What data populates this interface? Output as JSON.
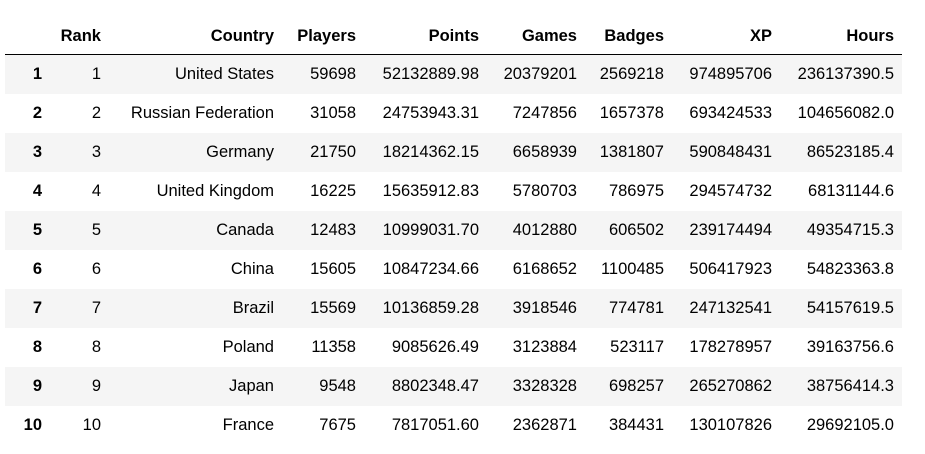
{
  "table": {
    "columns": [
      "",
      "Rank",
      "Country",
      "Players",
      "Points",
      "Games",
      "Badges",
      "XP",
      "Hours"
    ],
    "rows": [
      [
        "1",
        "1",
        "United States",
        "59698",
        "52132889.98",
        "20379201",
        "2569218",
        "974895706",
        "236137390.5"
      ],
      [
        "2",
        "2",
        "Russian Federation",
        "31058",
        "24753943.31",
        "7247856",
        "1657378",
        "693424533",
        "104656082.0"
      ],
      [
        "3",
        "3",
        "Germany",
        "21750",
        "18214362.15",
        "6658939",
        "1381807",
        "590848431",
        "86523185.4"
      ],
      [
        "4",
        "4",
        "United Kingdom",
        "16225",
        "15635912.83",
        "5780703",
        "786975",
        "294574732",
        "68131144.6"
      ],
      [
        "5",
        "5",
        "Canada",
        "12483",
        "10999031.70",
        "4012880",
        "606502",
        "239174494",
        "49354715.3"
      ],
      [
        "6",
        "6",
        "China",
        "15605",
        "10847234.66",
        "6168652",
        "1100485",
        "506417923",
        "54823363.8"
      ],
      [
        "7",
        "7",
        "Brazil",
        "15569",
        "10136859.28",
        "3918546",
        "774781",
        "247132541",
        "54157619.5"
      ],
      [
        "8",
        "8",
        "Poland",
        "11358",
        "9085626.49",
        "3123884",
        "523117",
        "178278957",
        "39163756.6"
      ],
      [
        "9",
        "9",
        "Japan",
        "9548",
        "8802348.47",
        "3328328",
        "698257",
        "265270862",
        "38756414.3"
      ],
      [
        "10",
        "10",
        "France",
        "7675",
        "7817051.60",
        "2362871",
        "384431",
        "130107826",
        "29692105.0"
      ]
    ]
  }
}
